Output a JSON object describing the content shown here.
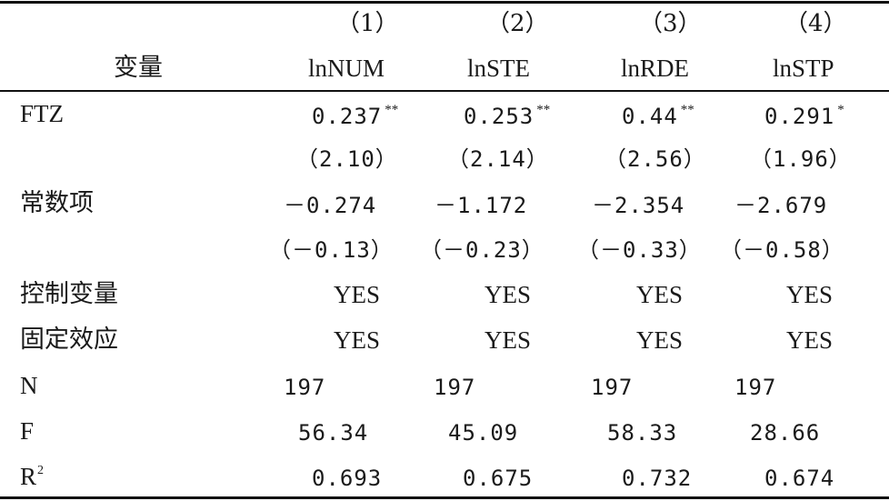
{
  "table": {
    "col_numbers": [
      "（1）",
      "（2）",
      "（3）",
      "（4）"
    ],
    "var_header": "变量",
    "col_names": [
      "lnNUM",
      "lnSTE",
      "lnRDE",
      "lnSTP"
    ],
    "rows": [
      {
        "label": "FTZ",
        "values": [
          "0.237",
          "0.253",
          "0.44",
          "0.291"
        ],
        "sig": [
          "**",
          "**",
          "**",
          "*"
        ]
      },
      {
        "label": "",
        "values": [
          "（2.10）",
          "（2.14）",
          "（2.56）",
          "（1.96）"
        ]
      },
      {
        "label": "常数项",
        "values": [
          "－0.274",
          "－1.172",
          "－2.354",
          "－2.679"
        ]
      },
      {
        "label": "",
        "values": [
          "（－0.13）",
          "（－0.23）",
          "（－0.33）",
          "（－0.58）"
        ]
      },
      {
        "label": "控制变量",
        "values": [
          "YES",
          "YES",
          "YES",
          "YES"
        ]
      },
      {
        "label": "固定效应",
        "values": [
          "YES",
          "YES",
          "YES",
          "YES"
        ]
      },
      {
        "label": "N",
        "values": [
          "197",
          "197",
          "197",
          "197"
        ]
      },
      {
        "label": "F",
        "values": [
          "56.34",
          "45.09",
          "58.33",
          "28.66"
        ]
      },
      {
        "label": "R",
        "label_sup": "2",
        "values": [
          "0.693",
          "0.675",
          "0.732",
          "0.674"
        ]
      }
    ]
  }
}
